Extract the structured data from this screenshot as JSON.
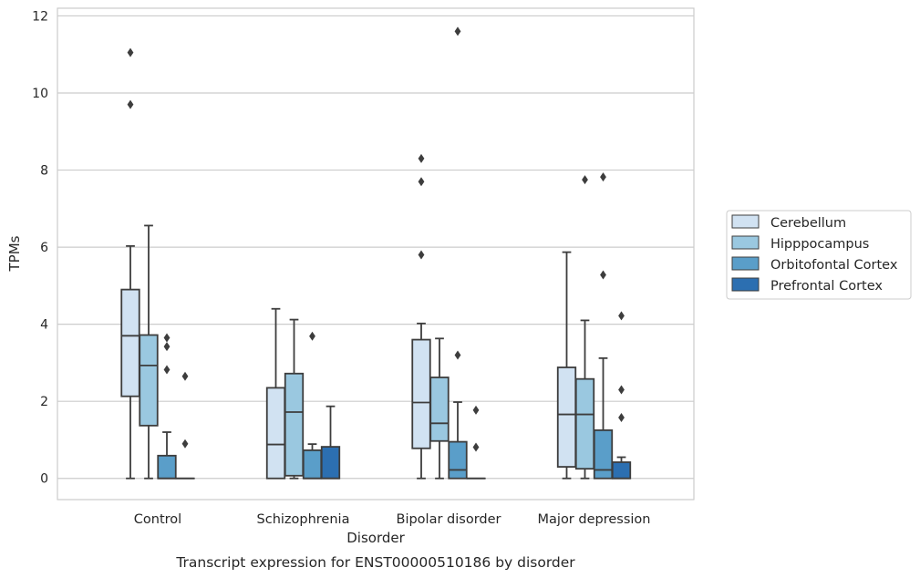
{
  "chart_data": {
    "type": "box",
    "title": "",
    "caption": "Transcript expression for ENST00000510186 by disorder",
    "xlabel": "Disorder",
    "ylabel": "TPMs",
    "ylim": [
      -0.55,
      12.2
    ],
    "yticks": [
      0,
      2,
      4,
      6,
      8,
      10,
      12
    ],
    "grid": true,
    "legend_position": "right",
    "categories": [
      "Control",
      "Schizophrenia",
      "Bipolar disorder",
      "Major depression"
    ],
    "series": [
      {
        "name": "Cerebellum",
        "color": "#d1e2f2",
        "boxes": [
          {
            "low": 0,
            "q1": 2.13,
            "median": 3.7,
            "q3": 4.9,
            "high": 6.03,
            "outliers": [
              9.7,
              11.05
            ]
          },
          {
            "low": 0,
            "q1": 0,
            "median": 0.88,
            "q3": 2.35,
            "high": 4.4,
            "outliers": []
          },
          {
            "low": 0,
            "q1": 0.78,
            "median": 1.97,
            "q3": 3.6,
            "high": 4.02,
            "outliers": [
              5.8,
              7.7,
              8.3
            ]
          },
          {
            "low": 0,
            "q1": 0.3,
            "median": 1.66,
            "q3": 2.88,
            "high": 5.87,
            "outliers": []
          }
        ]
      },
      {
        "name": "Hipppocampus",
        "color": "#9ac8e0",
        "boxes": [
          {
            "low": 0,
            "q1": 1.37,
            "median": 2.93,
            "q3": 3.72,
            "high": 6.56,
            "outliers": []
          },
          {
            "low": 0,
            "q1": 0.07,
            "median": 1.72,
            "q3": 2.72,
            "high": 4.12,
            "outliers": []
          },
          {
            "low": 0,
            "q1": 0.97,
            "median": 1.43,
            "q3": 2.62,
            "high": 3.63,
            "outliers": []
          },
          {
            "low": 0,
            "q1": 0.25,
            "median": 1.66,
            "q3": 2.58,
            "high": 4.1,
            "outliers": [
              7.75
            ]
          }
        ]
      },
      {
        "name": "Orbitofontal Cortex",
        "color": "#5a9ec9",
        "boxes": [
          {
            "low": 0,
            "q1": 0,
            "median": 0,
            "q3": 0.59,
            "high": 1.2,
            "outliers": [
              2.82,
              3.42,
              3.65
            ]
          },
          {
            "low": 0,
            "q1": 0,
            "median": 0,
            "q3": 0.73,
            "high": 0.89,
            "outliers": [
              3.69
            ]
          },
          {
            "low": 0,
            "q1": 0,
            "median": 0.22,
            "q3": 0.95,
            "high": 1.98,
            "outliers": [
              3.2,
              11.6
            ]
          },
          {
            "low": 0,
            "q1": 0,
            "median": 0.22,
            "q3": 1.25,
            "high": 3.12,
            "outliers": [
              5.28,
              7.82
            ]
          }
        ]
      },
      {
        "name": "Prefrontal Cortex",
        "color": "#2c6fb1",
        "boxes": [
          {
            "low": 0,
            "q1": 0,
            "median": 0,
            "q3": 0,
            "high": 0,
            "outliers": [
              0.9,
              2.65
            ]
          },
          {
            "low": 0,
            "q1": 0,
            "median": 0,
            "q3": 0.82,
            "high": 1.87,
            "outliers": []
          },
          {
            "low": 0,
            "q1": 0,
            "median": 0,
            "q3": 0,
            "high": 0,
            "outliers": [
              0.81,
              1.77
            ]
          },
          {
            "low": 0,
            "q1": 0,
            "median": 0,
            "q3": 0.42,
            "high": 0.55,
            "outliers": [
              1.58,
              2.3,
              4.22
            ]
          }
        ]
      }
    ]
  }
}
